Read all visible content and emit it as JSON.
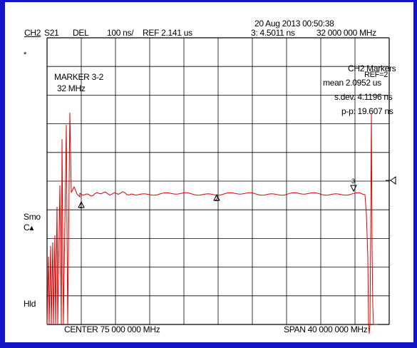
{
  "header": {
    "channel": "CH2",
    "param": "S21",
    "format": "DEL",
    "scale": "100 ns/",
    "reference": "REF 2.141 us",
    "datetime": "20 Aug 2013  00:50:38",
    "active_marker_readout": "3:  4.5011 ns",
    "active_marker_freq": "32 000 000 MHz"
  },
  "marker_box": {
    "line1": "MARKER 3-2",
    "line2": "32 MHz"
  },
  "stats": {
    "title": "CH2 Markers",
    "title_overlap": "REF=2",
    "mean": "mean  2.0952 us",
    "sdev": "s.dev.  4.1196 ns",
    "ptp": "p-p:  19.607 ns"
  },
  "side_labels": {
    "asterisk": "*",
    "smo": "Smo",
    "c_arrow": "C▴",
    "hld": "Hld"
  },
  "footer": {
    "center": "CENTER 75 000 000 MHz",
    "span": "SPAN  40 000 000 MHz"
  },
  "colors": {
    "frame": "#1414c8",
    "trace": "#e00000",
    "grid": "#000000"
  },
  "markers": [
    {
      "id": "1",
      "symbol": "triangle"
    },
    {
      "id": "2",
      "symbol": "triangle"
    },
    {
      "id": "3",
      "symbol": "triangle"
    }
  ]
}
